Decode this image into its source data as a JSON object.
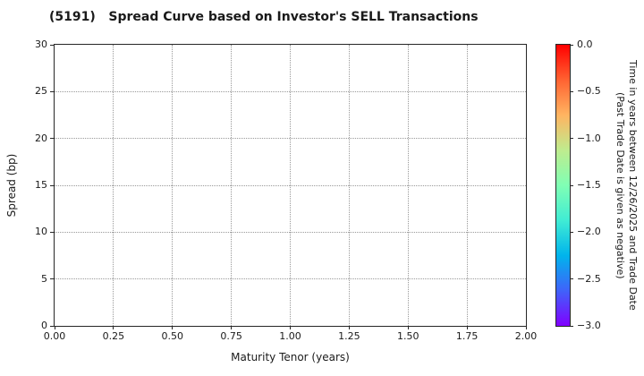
{
  "chart_data": {
    "type": "scatter",
    "title": "(5191)   Spread Curve based on Investor's SELL Transactions",
    "xlabel": "Maturity Tenor (years)",
    "ylabel": "Spread (bp)",
    "xlim": [
      0.0,
      2.0
    ],
    "ylim": [
      0,
      30
    ],
    "x_tick_labels": [
      "0.00",
      "0.25",
      "0.50",
      "0.75",
      "1.00",
      "1.25",
      "1.50",
      "1.75",
      "2.00"
    ],
    "y_tick_labels": [
      "0",
      "5",
      "10",
      "15",
      "20",
      "25",
      "30"
    ],
    "grid": true,
    "grid_style": "dotted",
    "legend": "none",
    "series": [],
    "points": [],
    "colorbar": {
      "label_line1": "Time in years between 12/26/2025 and Trade Date",
      "label_line2": "(Past Trade Date is given as negative)",
      "tick_labels": [
        "0.0",
        "−0.5",
        "−1.0",
        "−1.5",
        "−2.0",
        "−2.5",
        "−3.0"
      ],
      "value_range_top_to_bottom": [
        0.0,
        -3.0
      ],
      "colormap": "rainbow",
      "gradient_top_to_bottom": [
        "#ff0000",
        "#ff6231",
        "#ffb461",
        "#bfec8e",
        "#80ffb4",
        "#40ecd4",
        "#00b4ec",
        "#4062fa",
        "#8000ff"
      ]
    },
    "colors": {
      "spine": "#262626",
      "grid": "#999999",
      "text": "#1a1a1a",
      "background": "#ffffff"
    }
  }
}
